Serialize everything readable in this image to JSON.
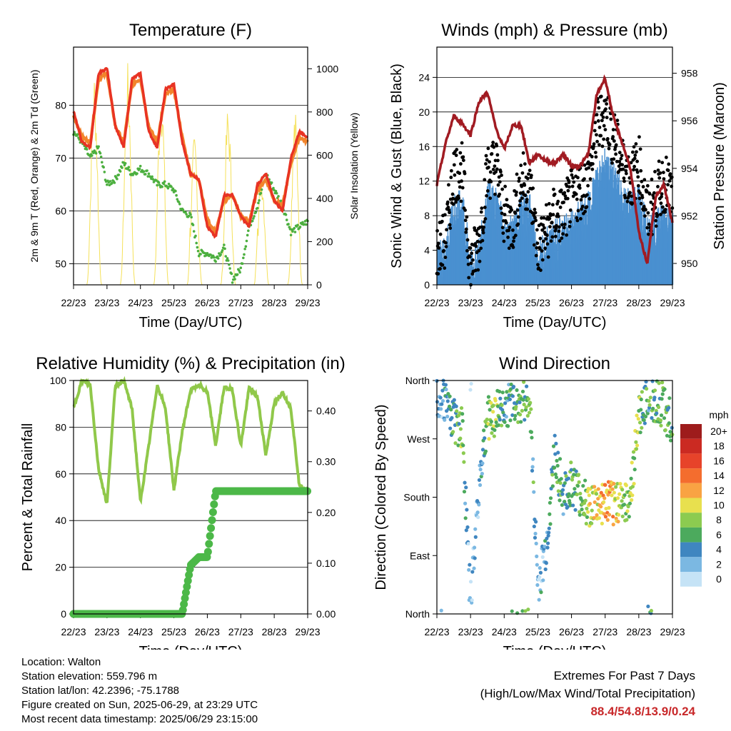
{
  "time_labels": [
    "22/23",
    "23/23",
    "24/23",
    "25/23",
    "26/23",
    "27/23",
    "28/23",
    "29/23"
  ],
  "colors": {
    "temp2m": "#e83323",
    "temp9m": "#f2842b",
    "dewpoint": "#4caf3f",
    "solar": "#f5e15a",
    "gust": "#000000",
    "wind": "#4a90d0",
    "pressure": "#a11b22",
    "rh": "#90c84a",
    "precip": "#4cb848",
    "extremes": "#c8282a"
  },
  "chart_data": [
    {
      "type": "line",
      "title": "Temperature (F)",
      "xlabel": "Time (Day/UTC)",
      "ylabel": "2m & 9m T (Red, Orange) & 2m Td (Green)",
      "ylabel_right": "Solar Insolation (Yellow)",
      "ylim": [
        46,
        91
      ],
      "yticks": [
        50,
        60,
        70,
        80
      ],
      "ylim_right": [
        0,
        1100
      ],
      "yticks_right": [
        0,
        200,
        400,
        600,
        800,
        1000
      ],
      "x": [
        0,
        0.25,
        0.5,
        0.75,
        1.0,
        1.25,
        1.5,
        1.75,
        2.0,
        2.25,
        2.5,
        2.75,
        3.0,
        3.25,
        3.5,
        3.75,
        4.0,
        4.25,
        4.5,
        4.75,
        5.0,
        5.25,
        5.5,
        5.75,
        6.0,
        6.25,
        6.5,
        6.75,
        7.0
      ],
      "series": [
        {
          "name": "2m T",
          "values": [
            79,
            73,
            72,
            86,
            87,
            76,
            72,
            85,
            86,
            75,
            72,
            83,
            84,
            73,
            67,
            66,
            57,
            55,
            63,
            63,
            59,
            57,
            65,
            67,
            62,
            60,
            70,
            75,
            74
          ]
        },
        {
          "name": "9m T",
          "values": [
            78,
            74,
            73,
            85,
            86,
            76,
            73,
            84,
            85,
            76,
            73,
            82,
            83,
            74,
            67,
            66,
            58,
            56,
            62,
            63,
            59,
            58,
            64,
            66,
            62,
            61,
            69,
            74,
            73
          ]
        },
        {
          "name": "2m Td",
          "values": [
            75,
            73,
            70,
            72,
            65,
            66,
            69,
            67,
            68,
            67,
            65,
            65,
            64,
            60,
            59,
            52,
            52,
            51,
            53,
            47,
            49,
            57,
            61,
            67,
            64,
            61,
            56,
            57,
            58
          ]
        },
        {
          "name": "Solar",
          "daily_peaks": [
            1060,
            1000,
            1030,
            980,
            700,
            840,
            560,
            820,
            940
          ]
        }
      ],
      "grid": true
    },
    {
      "type": "scatter",
      "title": "Winds (mph) & Pressure (mb)",
      "xlabel": "Time (Day/UTC)",
      "ylabel": "Sonic Wind & Gust (Blue, Black)",
      "ylabel_right": "Station Pressure (Maroon)",
      "ylim": [
        0,
        27.5
      ],
      "yticks": [
        0,
        4,
        8,
        12,
        16,
        20,
        24
      ],
      "ylim_right": [
        949.1,
        959.1
      ],
      "yticks_right": [
        950,
        952,
        954,
        956,
        958
      ],
      "x": [
        0,
        0.25,
        0.5,
        0.75,
        1.0,
        1.25,
        1.5,
        1.75,
        2.0,
        2.25,
        2.5,
        2.75,
        3.0,
        3.25,
        3.5,
        3.75,
        4.0,
        4.25,
        4.5,
        4.75,
        5.0,
        5.25,
        5.5,
        5.75,
        6.0,
        6.25,
        6.5,
        6.75,
        7.0
      ],
      "series": [
        {
          "name": "Gust",
          "values": [
            4,
            5,
            13,
            13,
            2,
            5,
            13,
            14,
            8,
            7,
            12,
            12,
            4,
            6,
            8,
            8,
            10,
            11,
            12,
            18,
            20,
            17,
            14,
            12,
            14,
            8,
            10,
            12,
            10
          ]
        },
        {
          "name": "Wind",
          "values": [
            2,
            3,
            8,
            8,
            1,
            3,
            9,
            9,
            5,
            5,
            8,
            8,
            2,
            4,
            5,
            5,
            6,
            7,
            8,
            11,
            13,
            11,
            9,
            8,
            9,
            5,
            6,
            7,
            6
          ]
        },
        {
          "name": "Pressure",
          "values": [
            953.3,
            955,
            956.2,
            955.9,
            955.4,
            956.8,
            957.2,
            955.7,
            954.8,
            955.8,
            955.8,
            954.2,
            954.6,
            954.3,
            954.2,
            954.6,
            954.1,
            954.1,
            954.6,
            957.1,
            957.8,
            956.1,
            955.1,
            954,
            951.3,
            950,
            952.8,
            953.3,
            951.7
          ]
        }
      ],
      "grid": true
    },
    {
      "type": "line",
      "title": "Relative Humidity (%) & Precipitation (in)",
      "xlabel": "Time (Day/UTC)",
      "ylabel": "Percent & Total Rainfall",
      "ylim": [
        0,
        100
      ],
      "yticks": [
        0,
        20,
        40,
        60,
        80,
        100
      ],
      "ylim_right": [
        0,
        0.46
      ],
      "yticks_right": [
        "0.00",
        "0.10",
        "0.20",
        "0.30",
        "0.40"
      ],
      "x": [
        0,
        0.25,
        0.5,
        0.75,
        1.0,
        1.25,
        1.5,
        1.75,
        2.0,
        2.25,
        2.5,
        2.75,
        3.0,
        3.25,
        3.5,
        3.75,
        4.0,
        4.25,
        4.5,
        4.75,
        5.0,
        5.25,
        5.5,
        5.75,
        6.0,
        6.25,
        6.5,
        6.75,
        7.0
      ],
      "series": [
        {
          "name": "RH",
          "values": [
            88,
            100,
            98,
            62,
            47,
            98,
            100,
            88,
            48,
            72,
            98,
            88,
            53,
            78,
            96,
            98,
            95,
            72,
            97,
            96,
            72,
            97,
            93,
            68,
            90,
            95,
            88,
            55,
            53
          ]
        },
        {
          "name": "Precip",
          "values": [
            0,
            0,
            0,
            0,
            0,
            0,
            0,
            0,
            0,
            0,
            0,
            0,
            0,
            0,
            0.096,
            0.112,
            0.112,
            0.242,
            0.242,
            0.242,
            0.242,
            0.242,
            0.242,
            0.242,
            0.242,
            0.242,
            0.242,
            0.242,
            0.242
          ]
        }
      ],
      "grid": true
    },
    {
      "type": "scatter",
      "title": "Wind Direction",
      "xlabel": "Time (Day/UTC)",
      "ylabel": "Direction (Colored By Speed)",
      "yticks": [
        "North",
        "West",
        "South",
        "East",
        "North"
      ],
      "legend_title": "mph",
      "legend_labels": [
        "20+",
        "18",
        "16",
        "14",
        "12",
        "10",
        "8",
        "6",
        "4",
        "2",
        "0"
      ],
      "legend_colors": [
        "#9e1c1c",
        "#cb2a22",
        "#e7432a",
        "#f46d2e",
        "#f9a343",
        "#e8e04e",
        "#8ccb50",
        "#4caa5d",
        "#3f86c0",
        "#7bb8e2",
        "#c5e3f6"
      ],
      "x": [
        0,
        0.25,
        0.5,
        0.75,
        1.0,
        1.25,
        1.5,
        1.75,
        2.0,
        2.25,
        2.5,
        2.75,
        3.0,
        3.25,
        3.5,
        3.75,
        4.0,
        4.25,
        4.5,
        4.75,
        5.0,
        5.25,
        5.5,
        5.75,
        6.0,
        6.25,
        6.5,
        6.75,
        7.0
      ],
      "direction_deg": [
        340,
        330,
        300,
        290,
        10,
        200,
        300,
        310,
        320,
        330,
        330,
        340,
        40,
        100,
        250,
        180,
        200,
        180,
        170,
        165,
        170,
        170,
        175,
        180,
        300,
        340,
        330,
        320,
        290
      ],
      "speed": [
        2,
        3,
        6,
        7,
        1,
        3,
        7,
        8,
        5,
        5,
        7,
        7,
        2,
        4,
        5,
        5,
        6,
        7,
        8,
        11,
        13,
        11,
        9,
        8,
        8,
        5,
        6,
        7,
        6
      ]
    }
  ],
  "info": {
    "location": "Location: Walton",
    "elevation": "Station elevation: 559.796 m",
    "latlon": "Station lat/lon: 42.2396; -75.1788",
    "created": "Figure created on Sun, 2025-06-29, at 23:29 UTC",
    "recent": "Most recent data timestamp: 2025/06/29 23:15:00"
  },
  "extremes": {
    "title": "Extremes For Past 7 Days",
    "subtitle": "(High/Low/Max Wind/Total Precipitation)",
    "values": "88.4/54.8/13.9/0.24"
  }
}
